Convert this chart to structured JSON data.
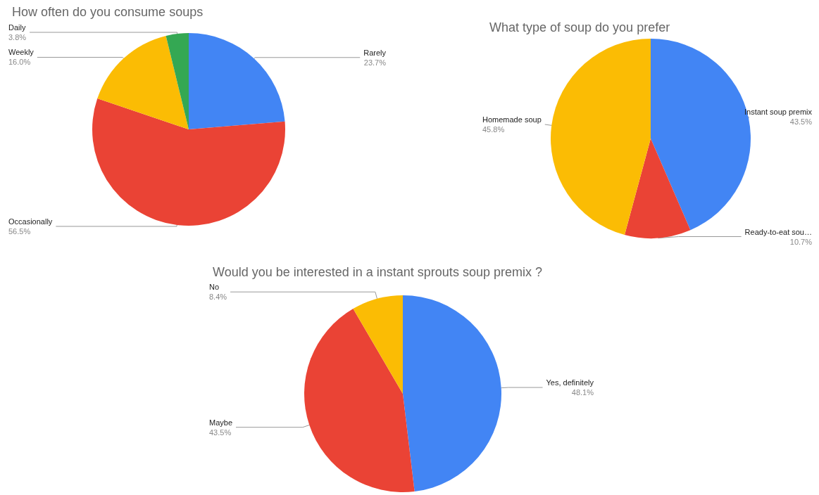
{
  "chart_data": [
    {
      "type": "pie",
      "title": "How often do you consume soups",
      "categories": [
        "Rarely",
        "Occasionally",
        "Weekly",
        "Daily"
      ],
      "values": [
        23.7,
        56.5,
        16.0,
        3.8
      ],
      "colors": [
        "#4285f4",
        "#ea4335",
        "#fbbc04",
        "#34a853"
      ],
      "value_labels": [
        "23.7%",
        "56.5%",
        "16.0%",
        "3.8%"
      ]
    },
    {
      "type": "pie",
      "title": "What type of soup do you prefer",
      "categories": [
        "Instant soup premix",
        "Ready-to-eat sou…",
        "Homemade soup"
      ],
      "values": [
        43.5,
        10.7,
        45.8
      ],
      "colors": [
        "#4285f4",
        "#ea4335",
        "#fbbc04"
      ],
      "value_labels": [
        "43.5%",
        "10.7%",
        "45.8%"
      ]
    },
    {
      "type": "pie",
      "title": "Would you be interested in a instant sprouts soup premix ?",
      "categories": [
        "Yes, definitely",
        "Maybe",
        "No"
      ],
      "values": [
        48.1,
        43.5,
        8.4
      ],
      "colors": [
        "#4285f4",
        "#ea4335",
        "#fbbc04"
      ],
      "value_labels": [
        "48.1%",
        "43.5%",
        "8.4%"
      ]
    }
  ]
}
